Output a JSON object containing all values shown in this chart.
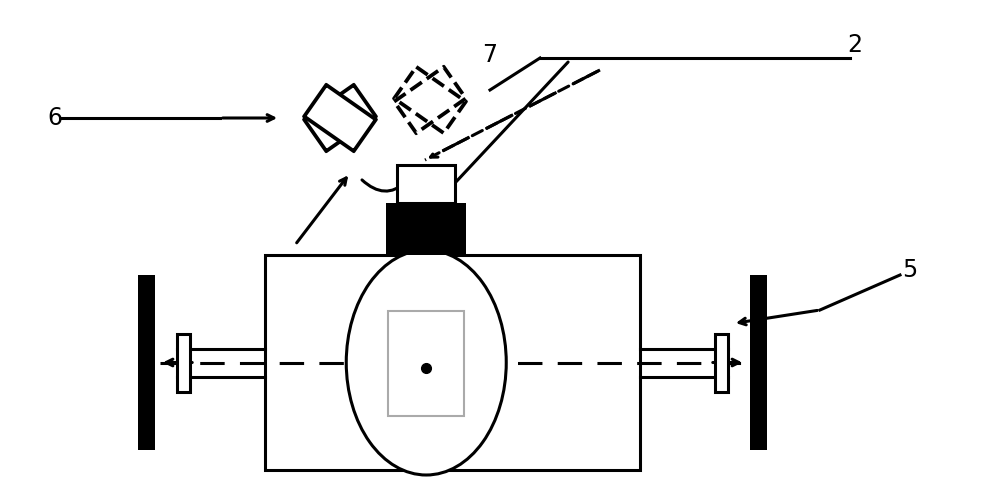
{
  "bg_color": "#ffffff",
  "figw": 10.0,
  "figh": 5.0,
  "label_2": "2",
  "label_5": "5",
  "label_6": "6",
  "label_7": "7",
  "lw": 2.2
}
